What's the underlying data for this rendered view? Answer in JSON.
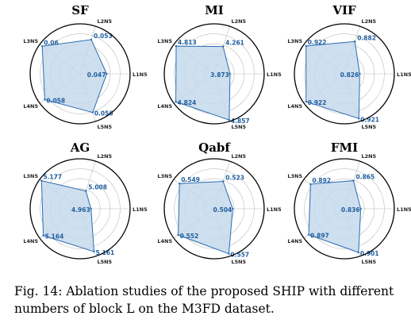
{
  "chart_data": [
    {
      "type": "radar",
      "title": "SF",
      "axes": [
        "L1N5",
        "L2N5",
        "L3N5",
        "L4N5",
        "L5N5"
      ],
      "values": [
        0.047,
        0.053,
        0.06,
        0.058,
        0.056
      ],
      "labels": [
        "0.047",
        "0.053",
        "0.06",
        "0.058",
        "0.056"
      ],
      "range": [
        0.03,
        0.062
      ],
      "grid": true
    },
    {
      "type": "radar",
      "title": "MI",
      "axes": [
        "L1N5",
        "L2N5",
        "L3N5",
        "L4N5",
        "L5N5"
      ],
      "values": [
        3.873,
        4.261,
        4.813,
        4.824,
        4.857
      ],
      "labels": [
        "3.873",
        "4.261",
        "4.813",
        "4.824",
        "4.857"
      ],
      "range": [
        3.4,
        4.9
      ],
      "grid": true
    },
    {
      "type": "radar",
      "title": "VIF",
      "axes": [
        "L1N5",
        "L2N5",
        "L3N5",
        "L4N5",
        "L5N5"
      ],
      "values": [
        0.826,
        0.882,
        0.922,
        0.922,
        0.921
      ],
      "labels": [
        "0.826",
        "0.882",
        "0.922",
        "0.922",
        "0.921"
      ],
      "range": [
        0.78,
        0.93
      ],
      "grid": true
    },
    {
      "type": "radar",
      "title": "AG",
      "axes": [
        "L1N5",
        "L2N5",
        "L3N5",
        "L4N5",
        "L5N5"
      ],
      "values": [
        4.963,
        5.008,
        5.177,
        5.164,
        5.161
      ],
      "labels": [
        "4.963",
        "5.008",
        "5.177",
        "5.164",
        "5.161"
      ],
      "range": [
        4.9,
        5.19
      ],
      "grid": true
    },
    {
      "type": "radar",
      "title": "Qabf",
      "axes": [
        "L1N5",
        "L2N5",
        "L3N5",
        "L4N5",
        "L5N5"
      ],
      "values": [
        0.504,
        0.523,
        0.549,
        0.552,
        0.557
      ],
      "labels": [
        "0.504",
        "0.523",
        "0.549",
        "0.552",
        "0.557"
      ],
      "range": [
        0.47,
        0.562
      ],
      "grid": true
    },
    {
      "type": "radar",
      "title": "FMI",
      "axes": [
        "L1N5",
        "L2N5",
        "L3N5",
        "L4N5",
        "L5N5"
      ],
      "values": [
        0.836,
        0.865,
        0.892,
        0.897,
        0.901
      ],
      "labels": [
        "0.836",
        "0.865",
        "0.892",
        "0.897",
        "0.901"
      ],
      "range": [
        0.8,
        0.91
      ],
      "grid": true
    }
  ],
  "caption": "Fig. 14: Ablation studies of the proposed SHIP with different numbers of block L on the M3FD dataset.",
  "colors": {
    "line": "#2b6cb0",
    "fill": "#c6d9ec",
    "grid": "#bbbbbb",
    "frame": "#000000",
    "value_text": "#1f5f9f"
  }
}
